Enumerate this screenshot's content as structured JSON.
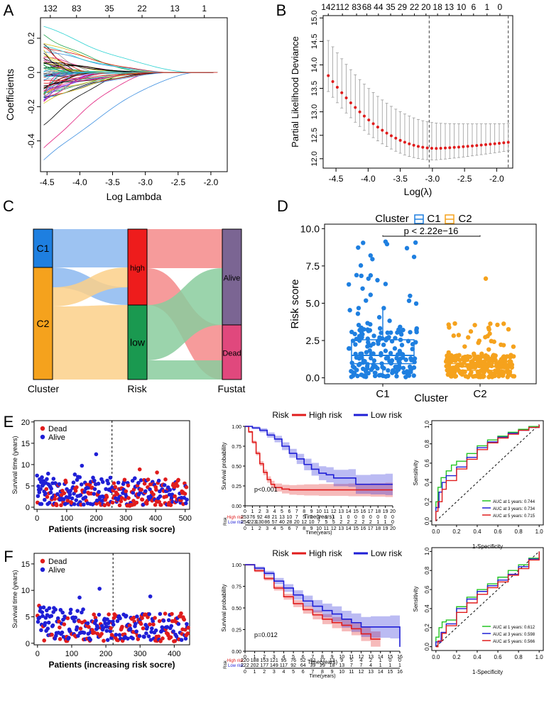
{
  "panels": {
    "A": {
      "letter": "A",
      "type": "line",
      "xlabel": "Log Lambda",
      "ylabel": "Coefficients",
      "xlim": [
        -4.6,
        -1.75
      ],
      "ylim": [
        -0.58,
        0.32
      ],
      "xticks": [
        "-4.5",
        "-4.0",
        "-3.5",
        "-3.0",
        "-2.5",
        "-2.0"
      ],
      "xtick_values": [
        -4.5,
        -4.0,
        -3.5,
        -3.0,
        -2.5,
        -2.0
      ],
      "yticks": [
        "-0.4",
        "-0.2",
        "0.0",
        "0.2"
      ],
      "ytick_values": [
        -0.4,
        -0.2,
        0.0,
        0.2
      ],
      "top_ticks": [
        "132",
        "83",
        "35",
        "22",
        "13",
        "1"
      ],
      "top_tick_values": [
        -4.45,
        -4.05,
        -3.55,
        -3.05,
        -2.55,
        -2.1
      ]
    },
    "B": {
      "letter": "B",
      "type": "scatter",
      "xlabel": "Log(λ)",
      "ylabel": "Partial Likelihood Deviance",
      "xlim": [
        -4.7,
        -1.75
      ],
      "ylim": [
        11.8,
        15.05
      ],
      "xticks": [
        "-4.5",
        "-4.0",
        "-3.5",
        "-3.0",
        "-2.5",
        "-2.0"
      ],
      "xtick_values": [
        -4.5,
        -4.0,
        -3.5,
        -3.0,
        -2.5,
        -2.0
      ],
      "yticks": [
        "12.0",
        "12.5",
        "13.0",
        "13.5",
        "14.0",
        "14.5",
        "15.0"
      ],
      "ytick_values": [
        12.0,
        12.5,
        13.0,
        13.5,
        14.0,
        14.5,
        15.0
      ],
      "top_ticks": [
        "142",
        "112",
        "83",
        "68",
        "44",
        "35",
        "29",
        "22",
        "20",
        "18",
        "13",
        "10",
        "6",
        "1",
        "0"
      ],
      "top_tick_values": [
        -4.62,
        -4.4,
        -4.18,
        -4.02,
        -3.84,
        -3.65,
        -3.47,
        -3.28,
        -3.1,
        -2.92,
        -2.74,
        -2.55,
        -2.36,
        -2.15,
        -1.95
      ],
      "vlines": [
        -3.05,
        -1.82
      ]
    },
    "C": {
      "letter": "C",
      "type": "sankey",
      "axes": [
        "Cluster",
        "Risk",
        "Fustat"
      ],
      "nodes": {
        "cluster": [
          "C1",
          "C2"
        ],
        "risk": [
          "high",
          "low"
        ],
        "fustat": [
          "Alive",
          "Dead"
        ]
      },
      "colors": {
        "C1": "#1e7fe0",
        "C2": "#f5a21d",
        "high": "#ee1c1c",
        "low": "#1a9950",
        "Alive": "#7b6593",
        "Dead": "#e0487d"
      },
      "flow_colors": {
        "C1": "#8cb8f0",
        "C2": "#fbd08a",
        "high": "#f58a8a",
        "low": "#89cc9e"
      }
    },
    "D": {
      "letter": "D",
      "type": "boxplot",
      "legend_title": "Cluster",
      "legend": [
        "C1",
        "C2"
      ],
      "xlabel": "Cluster",
      "ylabel": "Risk score",
      "categories": [
        "C1",
        "C2"
      ],
      "ylim": [
        -0.4,
        10.3
      ],
      "yticks": [
        "0.0",
        "2.5",
        "5.0",
        "7.5",
        "10.0"
      ],
      "ytick_values": [
        0,
        2.5,
        5,
        7.5,
        10
      ],
      "pvalue": "p < 2.22e−16",
      "box_stats": [
        {
          "name": "C1",
          "q1": 0.95,
          "median": 1.5,
          "q3": 2.55,
          "whisker_low": 0.05,
          "whisker_high": 4.65,
          "color": "#1e7fe0"
        },
        {
          "name": "C2",
          "q1": 0.5,
          "median": 0.75,
          "q3": 0.95,
          "whisker_low": 0.05,
          "whisker_high": 1.6,
          "color": "#f5a21d"
        }
      ]
    },
    "E": {
      "letter": "E",
      "scatter": {
        "legend": [
          "Dead",
          "Alive"
        ],
        "xlabel": "Patients (increasing risk socre)",
        "ylabel": "Survival time (years)",
        "xlim": [
          -10,
          515
        ],
        "ylim": [
          -0.5,
          20.3
        ],
        "xticks": [
          "0",
          "100",
          "200",
          "300",
          "400",
          "500"
        ],
        "xtick_values": [
          0,
          100,
          200,
          300,
          400,
          500
        ],
        "yticks": [
          "0",
          "5",
          "10",
          "15",
          "20"
        ],
        "ytick_values": [
          0,
          5,
          10,
          15,
          20
        ],
        "n": 507,
        "cutoff": 253
      },
      "km": {
        "legend_title": "Risk",
        "legend": [
          "High risk",
          "Low risk"
        ],
        "xlabel": "Time(years)",
        "ylabel": "Survival probability",
        "pvalue": "p<0.001",
        "xlim": [
          0,
          20
        ],
        "ylim": [
          0,
          1
        ],
        "xticks": [
          "0",
          "1",
          "2",
          "3",
          "4",
          "5",
          "6",
          "7",
          "8",
          "9",
          "10",
          "11",
          "12",
          "13",
          "14",
          "15",
          "16",
          "17",
          "18",
          "19",
          "20"
        ],
        "yticks": [
          "0.00",
          "0.25",
          "0.50",
          "0.75",
          "1.00"
        ],
        "ytick_values": [
          0,
          0.25,
          0.5,
          0.75,
          1
        ],
        "high": [
          [
            0,
            1
          ],
          [
            0.5,
            0.93
          ],
          [
            1,
            0.8
          ],
          [
            1.5,
            0.66
          ],
          [
            2,
            0.53
          ],
          [
            2.5,
            0.42
          ],
          [
            3,
            0.33
          ],
          [
            3.5,
            0.27
          ],
          [
            4,
            0.23
          ],
          [
            5,
            0.21
          ],
          [
            6,
            0.2
          ],
          [
            7,
            0.2
          ],
          [
            8,
            0.2
          ],
          [
            10,
            0.2
          ],
          [
            14,
            0.2
          ],
          [
            17,
            0.2
          ],
          [
            19,
            0.2
          ],
          [
            20,
            0.2
          ]
        ],
        "low": [
          [
            0,
            1
          ],
          [
            1,
            0.98
          ],
          [
            2,
            0.95
          ],
          [
            3,
            0.89
          ],
          [
            4,
            0.84
          ],
          [
            5,
            0.75
          ],
          [
            6,
            0.66
          ],
          [
            7,
            0.59
          ],
          [
            8,
            0.52
          ],
          [
            9,
            0.46
          ],
          [
            10,
            0.41
          ],
          [
            11,
            0.39
          ],
          [
            12,
            0.35
          ],
          [
            14,
            0.35
          ],
          [
            15,
            0.27
          ],
          [
            17,
            0.27
          ],
          [
            19,
            0.27
          ],
          [
            20,
            0.27
          ]
        ],
        "table_label": "Risk",
        "risk_table": [
          {
            "name": "High risk",
            "values": [
              "253",
              "76",
              "92",
              "48",
              "21",
              "13",
              "10",
              "7",
              "5",
              "2",
              "2",
              "1",
              "1",
              "1",
              "0",
              "0",
              "0",
              "0",
              "0",
              "0",
              "0"
            ]
          },
          {
            "name": "Low risk",
            "values": [
              "254",
              "223",
              "130",
              "86",
              "57",
              "40",
              "28",
              "20",
              "12",
              "10",
              "7",
              "5",
              "5",
              "2",
              "2",
              "2",
              "2",
              "2",
              "1",
              "1",
              "0"
            ]
          }
        ]
      },
      "roc": {
        "xlabel": "1-Specificity",
        "ylabel": "Sensitivity",
        "ticks": [
          "0.0",
          "0.2",
          "0.4",
          "0.6",
          "0.8",
          "1.0"
        ],
        "legend": [
          "AUC at 1 years: 0.744",
          "AUC at 3 years: 0.734",
          "AUC at 5 years: 0.715"
        ],
        "colors": [
          "#22c422",
          "#1f1fd6",
          "#e01c1c"
        ],
        "curves": [
          [
            [
              0,
              0
            ],
            [
              0,
              0.2
            ],
            [
              0.02,
              0.35
            ],
            [
              0.05,
              0.45
            ],
            [
              0.1,
              0.52
            ],
            [
              0.15,
              0.58
            ],
            [
              0.2,
              0.62
            ],
            [
              0.3,
              0.7
            ],
            [
              0.4,
              0.78
            ],
            [
              0.5,
              0.84
            ],
            [
              0.6,
              0.88
            ],
            [
              0.7,
              0.92
            ],
            [
              0.8,
              0.95
            ],
            [
              0.9,
              0.98
            ],
            [
              1,
              1
            ]
          ],
          [
            [
              0,
              0
            ],
            [
              0,
              0.14
            ],
            [
              0.03,
              0.3
            ],
            [
              0.06,
              0.4
            ],
            [
              0.1,
              0.47
            ],
            [
              0.2,
              0.56
            ],
            [
              0.3,
              0.66
            ],
            [
              0.4,
              0.76
            ],
            [
              0.5,
              0.82
            ],
            [
              0.6,
              0.87
            ],
            [
              0.7,
              0.91
            ],
            [
              0.8,
              0.94
            ],
            [
              0.9,
              0.97
            ],
            [
              1,
              1
            ]
          ],
          [
            [
              0,
              0
            ],
            [
              0,
              0.1
            ],
            [
              0.02,
              0.2
            ],
            [
              0.06,
              0.33
            ],
            [
              0.1,
              0.42
            ],
            [
              0.2,
              0.54
            ],
            [
              0.3,
              0.64
            ],
            [
              0.4,
              0.74
            ],
            [
              0.5,
              0.81
            ],
            [
              0.6,
              0.86
            ],
            [
              0.7,
              0.9
            ],
            [
              0.8,
              0.94
            ],
            [
              0.9,
              0.97
            ],
            [
              1,
              1
            ]
          ]
        ]
      }
    },
    "F": {
      "letter": "F",
      "scatter": {
        "legend": [
          "Dead",
          "Alive"
        ],
        "xlabel": "Patients (increasing risk socre)",
        "ylabel": "Survival time (years)",
        "xlim": [
          -10,
          445
        ],
        "ylim": [
          -0.3,
          17
        ],
        "xticks": [
          "0",
          "100",
          "200",
          "300",
          "400"
        ],
        "xtick_values": [
          0,
          100,
          200,
          300,
          400
        ],
        "yticks": [
          "0",
          "5",
          "10",
          "15"
        ],
        "ytick_values": [
          0,
          5,
          10,
          15
        ],
        "n": 442,
        "cutoff": 221
      },
      "km": {
        "legend_title": "Risk",
        "legend": [
          "High risk",
          "Low risk"
        ],
        "xlabel": "Time(years)",
        "ylabel": "Survival probability",
        "pvalue": "p=0.012",
        "xlim": [
          0,
          16
        ],
        "ylim": [
          0,
          1
        ],
        "xticks": [
          "0",
          "1",
          "2",
          "3",
          "4",
          "5",
          "6",
          "7",
          "8",
          "9",
          "10",
          "11",
          "12",
          "13",
          "14",
          "15",
          "16"
        ],
        "yticks": [
          "0.00",
          "0.25",
          "0.50",
          "0.75",
          "1.00"
        ],
        "ytick_values": [
          0,
          0.25,
          0.5,
          0.75,
          1
        ],
        "high": [
          [
            0,
            1
          ],
          [
            1,
            0.93
          ],
          [
            2,
            0.84
          ],
          [
            3,
            0.73
          ],
          [
            4,
            0.63
          ],
          [
            5,
            0.55
          ],
          [
            6,
            0.48
          ],
          [
            7,
            0.42
          ],
          [
            8,
            0.37
          ],
          [
            9,
            0.33
          ],
          [
            10,
            0.3
          ],
          [
            11,
            0.26
          ],
          [
            12,
            0.2
          ],
          [
            13,
            0.14
          ],
          [
            14,
            0.14
          ]
        ],
        "low": [
          [
            0,
            1
          ],
          [
            1,
            0.96
          ],
          [
            2,
            0.9
          ],
          [
            3,
            0.81
          ],
          [
            4,
            0.73
          ],
          [
            5,
            0.65
          ],
          [
            6,
            0.58
          ],
          [
            7,
            0.52
          ],
          [
            8,
            0.47
          ],
          [
            9,
            0.43
          ],
          [
            10,
            0.37
          ],
          [
            11,
            0.33
          ],
          [
            12,
            0.28
          ],
          [
            13,
            0.28
          ],
          [
            15,
            0.28
          ],
          [
            16,
            0.05
          ]
        ],
        "table_label": "Risk",
        "risk_table": [
          {
            "name": "High risk",
            "values": [
              "220",
              "188",
              "153",
              "121",
              "95",
              "76",
              "52",
              "32",
              "17",
              "13",
              "9",
              "5",
              "4",
              "2",
              "1",
              "0",
              "0"
            ]
          },
          {
            "name": "Low risk",
            "values": [
              "222",
              "202",
              "177",
              "149",
              "117",
              "92",
              "64",
              "39",
              "29",
              "18",
              "13",
              "7",
              "7",
              "4",
              "1",
              "1",
              "1"
            ]
          }
        ]
      },
      "roc": {
        "xlabel": "1-Specificity",
        "ylabel": "Sensitivity",
        "ticks": [
          "0.0",
          "0.2",
          "0.4",
          "0.6",
          "0.8",
          "1.0"
        ],
        "legend": [
          "AUC at 1 years: 0.612",
          "AUC at 3 years: 0.598",
          "AUC at 5 years: 0.566"
        ],
        "colors": [
          "#22c422",
          "#1f1fd6",
          "#e01c1c"
        ],
        "curves": [
          [
            [
              0,
              0
            ],
            [
              0,
              0.1
            ],
            [
              0.03,
              0.2
            ],
            [
              0.06,
              0.26
            ],
            [
              0.1,
              0.28
            ],
            [
              0.2,
              0.42
            ],
            [
              0.3,
              0.52
            ],
            [
              0.4,
              0.6
            ],
            [
              0.5,
              0.66
            ],
            [
              0.6,
              0.73
            ],
            [
              0.7,
              0.8
            ],
            [
              0.8,
              0.86
            ],
            [
              0.9,
              0.93
            ],
            [
              1,
              1
            ]
          ],
          [
            [
              0,
              0
            ],
            [
              0,
              0.05
            ],
            [
              0.05,
              0.15
            ],
            [
              0.1,
              0.24
            ],
            [
              0.2,
              0.4
            ],
            [
              0.3,
              0.5
            ],
            [
              0.4,
              0.58
            ],
            [
              0.5,
              0.64
            ],
            [
              0.6,
              0.7
            ],
            [
              0.7,
              0.76
            ],
            [
              0.8,
              0.84
            ],
            [
              0.9,
              0.92
            ],
            [
              1,
              1
            ]
          ],
          [
            [
              0,
              0
            ],
            [
              0.02,
              0.06
            ],
            [
              0.06,
              0.14
            ],
            [
              0.1,
              0.22
            ],
            [
              0.2,
              0.36
            ],
            [
              0.3,
              0.46
            ],
            [
              0.4,
              0.55
            ],
            [
              0.5,
              0.62
            ],
            [
              0.6,
              0.68
            ],
            [
              0.7,
              0.75
            ],
            [
              0.8,
              0.82
            ],
            [
              0.9,
              0.91
            ],
            [
              1,
              1
            ]
          ]
        ]
      }
    }
  }
}
